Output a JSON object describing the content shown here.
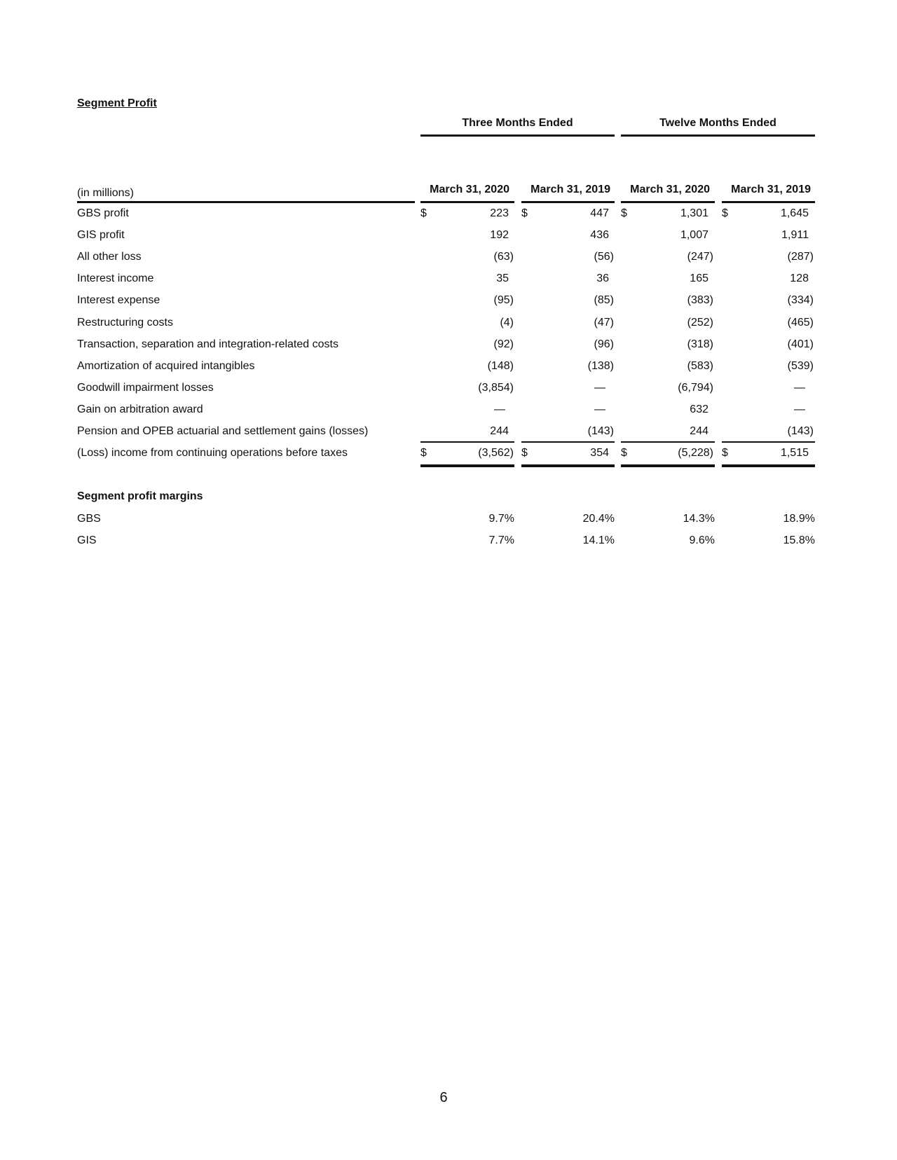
{
  "title": "Segment Profit",
  "groups": [
    "Three Months Ended",
    "Twelve Months Ended"
  ],
  "units_label": "(in millions)",
  "columns": [
    "March 31, 2020",
    "March 31, 2019",
    "March 31, 2020",
    "March 31, 2019"
  ],
  "rows": [
    {
      "label": "GBS profit",
      "dollar": true,
      "values": [
        "223",
        "447",
        "1,301",
        "1,645"
      ]
    },
    {
      "label": "GIS profit",
      "values": [
        "192",
        "436",
        "1,007",
        "1,911"
      ]
    },
    {
      "label": "All other loss",
      "values": [
        "(63)",
        "(56)",
        "(247)",
        "(287)"
      ]
    },
    {
      "label": "Interest income",
      "values": [
        "35",
        "36",
        "165",
        "128"
      ]
    },
    {
      "label": "Interest expense",
      "values": [
        "(95)",
        "(85)",
        "(383)",
        "(334)"
      ]
    },
    {
      "label": "Restructuring costs",
      "values": [
        "(4)",
        "(47)",
        "(252)",
        "(465)"
      ]
    },
    {
      "label": "Transaction, separation and integration-related costs",
      "values": [
        "(92)",
        "(96)",
        "(318)",
        "(401)"
      ]
    },
    {
      "label": "Amortization of acquired intangibles",
      "values": [
        "(148)",
        "(138)",
        "(583)",
        "(539)"
      ]
    },
    {
      "label": "Goodwill impairment losses",
      "values": [
        "(3,854)",
        "—",
        "(6,794)",
        "—"
      ]
    },
    {
      "label": "Gain on arbitration award",
      "values": [
        "—",
        "—",
        "632",
        "—"
      ]
    },
    {
      "label": "Pension and OPEB actuarial and settlement gains (losses)",
      "values": [
        "244",
        "(143)",
        "244",
        "(143)"
      ]
    },
    {
      "label": "(Loss) income from continuing operations before taxes",
      "dollar": true,
      "values": [
        "(3,562)",
        "354",
        "(5,228)",
        "1,515"
      ]
    }
  ],
  "dollar_sign": "$",
  "margins": {
    "title": "Segment profit margins",
    "rows": [
      {
        "label": "GBS",
        "values": [
          "9.7%",
          "20.4%",
          "14.3%",
          "18.9%"
        ]
      },
      {
        "label": "GIS",
        "values": [
          "7.7%",
          "14.1%",
          "9.6%",
          "15.8%"
        ]
      }
    ]
  },
  "page_number": "6"
}
